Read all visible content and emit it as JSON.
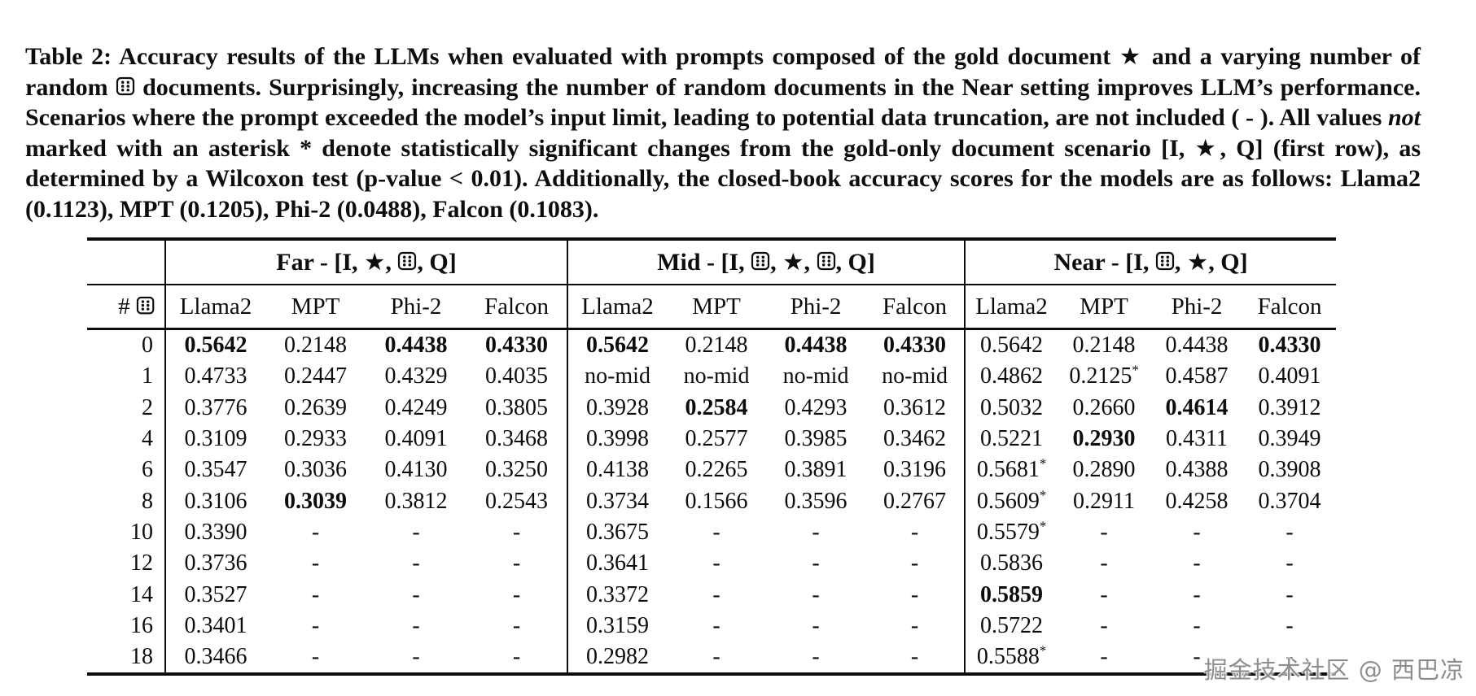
{
  "icons": {
    "star_icon": "★ black five-pointed star (gold document)",
    "dice_icon": "die-face-6 rounded square with six dots (random document)"
  },
  "caption": {
    "segments": [
      {
        "t": "text",
        "v": "Table 2: Accuracy results of the LLMs when evaluated with prompts composed of the gold document "
      },
      {
        "t": "star"
      },
      {
        "t": "text",
        "v": " and a varying number of random "
      },
      {
        "t": "dice"
      },
      {
        "t": "text",
        "v": " documents. Surprisingly, increasing the number of random documents in the Near setting improves LLM’s performance. Scenarios where the prompt exceeded the model’s input limit, leading to potential data truncation, are not included ( - ). All values "
      },
      {
        "t": "italic",
        "v": "not"
      },
      {
        "t": "text",
        "v": " marked with an asterisk "
      },
      {
        "t": "sup",
        "v": "*"
      },
      {
        "t": "text",
        "v": " denote statistically significant changes from the gold-only document scenario [I, "
      },
      {
        "t": "star"
      },
      {
        "t": "text",
        "v": ", Q] (first row), as determined by a Wilcoxon test (p-value < 0.01). Additionally, the closed-book accuracy scores for the models are as follows: Llama2 (0.1123), MPT (0.1205), Phi-2 (0.0488), Falcon (0.1083)."
      }
    ]
  },
  "table": {
    "hash_header_segments": [
      {
        "t": "text",
        "v": "# "
      },
      {
        "t": "dice"
      }
    ],
    "groups": [
      {
        "name": "far",
        "label_segments": [
          {
            "t": "text",
            "v": "Far - [I, "
          },
          {
            "t": "star"
          },
          {
            "t": "text",
            "v": ", "
          },
          {
            "t": "dice"
          },
          {
            "t": "text",
            "v": ", Q]"
          }
        ]
      },
      {
        "name": "mid",
        "label_segments": [
          {
            "t": "text",
            "v": "Mid - [I, "
          },
          {
            "t": "dice"
          },
          {
            "t": "text",
            "v": ", "
          },
          {
            "t": "star"
          },
          {
            "t": "text",
            "v": ", "
          },
          {
            "t": "dice"
          },
          {
            "t": "text",
            "v": ", Q]"
          }
        ]
      },
      {
        "name": "near",
        "label_segments": [
          {
            "t": "text",
            "v": "Near - [I, "
          },
          {
            "t": "dice"
          },
          {
            "t": "text",
            "v": ", "
          },
          {
            "t": "star"
          },
          {
            "t": "text",
            "v": ", Q]"
          }
        ]
      }
    ],
    "models": [
      "Llama2",
      "MPT",
      "Phi-2",
      "Falcon"
    ],
    "rows": [
      {
        "n": "0",
        "c": [
          {
            "v": "0.5642",
            "b": 1
          },
          {
            "v": "0.2148"
          },
          {
            "v": "0.4438",
            "b": 1
          },
          {
            "v": "0.4330",
            "b": 1
          },
          {
            "v": "0.5642",
            "b": 1
          },
          {
            "v": "0.2148"
          },
          {
            "v": "0.4438",
            "b": 1
          },
          {
            "v": "0.4330",
            "b": 1
          },
          {
            "v": "0.5642"
          },
          {
            "v": "0.2148"
          },
          {
            "v": "0.4438"
          },
          {
            "v": "0.4330",
            "b": 1
          }
        ]
      },
      {
        "n": "1",
        "c": [
          {
            "v": "0.4733"
          },
          {
            "v": "0.2447"
          },
          {
            "v": "0.4329"
          },
          {
            "v": "0.4035"
          },
          {
            "v": "no-mid"
          },
          {
            "v": "no-mid"
          },
          {
            "v": "no-mid"
          },
          {
            "v": "no-mid"
          },
          {
            "v": "0.4862"
          },
          {
            "v": "0.2125",
            "s": 1
          },
          {
            "v": "0.4587"
          },
          {
            "v": "0.4091"
          }
        ]
      },
      {
        "n": "2",
        "c": [
          {
            "v": "0.3776"
          },
          {
            "v": "0.2639"
          },
          {
            "v": "0.4249"
          },
          {
            "v": "0.3805"
          },
          {
            "v": "0.3928"
          },
          {
            "v": "0.2584",
            "b": 1
          },
          {
            "v": "0.4293"
          },
          {
            "v": "0.3612"
          },
          {
            "v": "0.5032"
          },
          {
            "v": "0.2660"
          },
          {
            "v": "0.4614",
            "b": 1
          },
          {
            "v": "0.3912"
          }
        ]
      },
      {
        "n": "4",
        "c": [
          {
            "v": "0.3109"
          },
          {
            "v": "0.2933"
          },
          {
            "v": "0.4091"
          },
          {
            "v": "0.3468"
          },
          {
            "v": "0.3998"
          },
          {
            "v": "0.2577"
          },
          {
            "v": "0.3985"
          },
          {
            "v": "0.3462"
          },
          {
            "v": "0.5221"
          },
          {
            "v": "0.2930",
            "b": 1
          },
          {
            "v": "0.4311"
          },
          {
            "v": "0.3949"
          }
        ]
      },
      {
        "n": "6",
        "c": [
          {
            "v": "0.3547"
          },
          {
            "v": "0.3036"
          },
          {
            "v": "0.4130"
          },
          {
            "v": "0.3250"
          },
          {
            "v": "0.4138"
          },
          {
            "v": "0.2265"
          },
          {
            "v": "0.3891"
          },
          {
            "v": "0.3196"
          },
          {
            "v": "0.5681",
            "s": 1
          },
          {
            "v": "0.2890"
          },
          {
            "v": "0.4388"
          },
          {
            "v": "0.3908"
          }
        ]
      },
      {
        "n": "8",
        "c": [
          {
            "v": "0.3106"
          },
          {
            "v": "0.3039",
            "b": 1
          },
          {
            "v": "0.3812"
          },
          {
            "v": "0.2543"
          },
          {
            "v": "0.3734"
          },
          {
            "v": "0.1566"
          },
          {
            "v": "0.3596"
          },
          {
            "v": "0.2767"
          },
          {
            "v": "0.5609",
            "s": 1
          },
          {
            "v": "0.2911"
          },
          {
            "v": "0.4258"
          },
          {
            "v": "0.3704"
          }
        ]
      },
      {
        "n": "10",
        "c": [
          {
            "v": "0.3390"
          },
          {
            "v": "-"
          },
          {
            "v": "-"
          },
          {
            "v": "-"
          },
          {
            "v": "0.3675"
          },
          {
            "v": "-"
          },
          {
            "v": "-"
          },
          {
            "v": "-"
          },
          {
            "v": "0.5579",
            "s": 1
          },
          {
            "v": "-"
          },
          {
            "v": "-"
          },
          {
            "v": "-"
          }
        ]
      },
      {
        "n": "12",
        "c": [
          {
            "v": "0.3736"
          },
          {
            "v": "-"
          },
          {
            "v": "-"
          },
          {
            "v": "-"
          },
          {
            "v": "0.3641"
          },
          {
            "v": "-"
          },
          {
            "v": "-"
          },
          {
            "v": "-"
          },
          {
            "v": "0.5836"
          },
          {
            "v": "-"
          },
          {
            "v": "-"
          },
          {
            "v": "-"
          }
        ]
      },
      {
        "n": "14",
        "c": [
          {
            "v": "0.3527"
          },
          {
            "v": "-"
          },
          {
            "v": "-"
          },
          {
            "v": "-"
          },
          {
            "v": "0.3372"
          },
          {
            "v": "-"
          },
          {
            "v": "-"
          },
          {
            "v": "-"
          },
          {
            "v": "0.5859",
            "b": 1
          },
          {
            "v": "-"
          },
          {
            "v": "-"
          },
          {
            "v": "-"
          }
        ]
      },
      {
        "n": "16",
        "c": [
          {
            "v": "0.3401"
          },
          {
            "v": "-"
          },
          {
            "v": "-"
          },
          {
            "v": "-"
          },
          {
            "v": "0.3159"
          },
          {
            "v": "-"
          },
          {
            "v": "-"
          },
          {
            "v": "-"
          },
          {
            "v": "0.5722"
          },
          {
            "v": "-"
          },
          {
            "v": "-"
          },
          {
            "v": "-"
          }
        ]
      },
      {
        "n": "18",
        "c": [
          {
            "v": "0.3466"
          },
          {
            "v": "-"
          },
          {
            "v": "-"
          },
          {
            "v": "-"
          },
          {
            "v": "0.2982"
          },
          {
            "v": "-"
          },
          {
            "v": "-"
          },
          {
            "v": "-"
          },
          {
            "v": "0.5588",
            "s": 1
          },
          {
            "v": "-"
          },
          {
            "v": "-"
          },
          {
            "v": "-"
          }
        ]
      }
    ]
  },
  "watermark": {
    "text": "掘金技术社区 @ 西巴凉"
  }
}
